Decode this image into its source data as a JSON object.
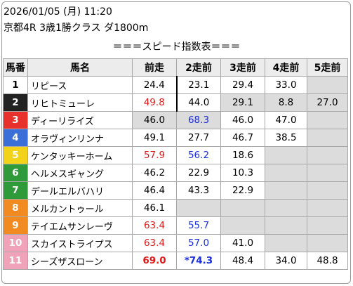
{
  "header": {
    "datetime": "2026/01/05 (月) 11:20",
    "race": "京都4R 3歳1勝クラス ダ1800m"
  },
  "title": "＝＝＝スピード指数表＝＝＝",
  "columns": [
    "馬番",
    "馬名",
    "前走",
    "2走前",
    "3走前",
    "4走前",
    "5走前"
  ],
  "colors": {
    "gray_cell": "#dcdcdc",
    "red_text": "#e01a1a",
    "blue_text": "#1a2ee0"
  },
  "rows": [
    {
      "no": "1",
      "name": "リピース",
      "bg": "#ffffff",
      "fg": "#000000",
      "vals": [
        {
          "t": "24.4",
          "c": "n",
          "g": false
        },
        {
          "t": "23.1",
          "c": "n",
          "g": false
        },
        {
          "t": "29.4",
          "c": "n",
          "g": false
        },
        {
          "t": "33.0",
          "c": "n",
          "g": false
        },
        {
          "t": "",
          "c": "n",
          "g": true
        }
      ]
    },
    {
      "no": "2",
      "name": "リヒトミューレ",
      "bg": "#222222",
      "fg": "#ffffff",
      "vals": [
        {
          "t": "49.8",
          "c": "r",
          "g": false
        },
        {
          "t": "44.0",
          "c": "n",
          "g": false
        },
        {
          "t": "29.1",
          "c": "n",
          "g": true
        },
        {
          "t": "8.8",
          "c": "n",
          "g": true
        },
        {
          "t": "27.0",
          "c": "n",
          "g": true
        }
      ]
    },
    {
      "no": "3",
      "name": "ディーリライズ",
      "bg": "#e8312a",
      "fg": "#ffffff",
      "vals": [
        {
          "t": "46.0",
          "c": "n",
          "g": true
        },
        {
          "t": "68.3",
          "c": "b",
          "g": true
        },
        {
          "t": "46.0",
          "c": "n",
          "g": false
        },
        {
          "t": "47.0",
          "c": "n",
          "g": false
        },
        {
          "t": "",
          "c": "n",
          "g": true
        }
      ]
    },
    {
      "no": "4",
      "name": "オラヴィンリンナ",
      "bg": "#3a6fd8",
      "fg": "#ffffff",
      "vals": [
        {
          "t": "49.1",
          "c": "n",
          "g": false
        },
        {
          "t": "27.7",
          "c": "n",
          "g": false
        },
        {
          "t": "46.7",
          "c": "n",
          "g": false
        },
        {
          "t": "38.5",
          "c": "n",
          "g": false
        },
        {
          "t": "",
          "c": "n",
          "g": true
        }
      ]
    },
    {
      "no": "5",
      "name": "ケンタッキーホーム",
      "bg": "#f3d21a",
      "fg": "#ffffff",
      "vals": [
        {
          "t": "57.9",
          "c": "r",
          "g": false
        },
        {
          "t": "56.2",
          "c": "b",
          "g": false
        },
        {
          "t": "18.6",
          "c": "n",
          "g": false
        },
        {
          "t": "",
          "c": "n",
          "g": true
        },
        {
          "t": "",
          "c": "n",
          "g": true
        }
      ]
    },
    {
      "no": "6",
      "name": "ヘルメスギャング",
      "bg": "#2e9a3a",
      "fg": "#ffffff",
      "vals": [
        {
          "t": "46.2",
          "c": "n",
          "g": false
        },
        {
          "t": "22.9",
          "c": "n",
          "g": false
        },
        {
          "t": "10.3",
          "c": "n",
          "g": false
        },
        {
          "t": "",
          "c": "n",
          "g": true
        },
        {
          "t": "",
          "c": "n",
          "g": true
        }
      ]
    },
    {
      "no": "7",
      "name": "デールエルバハリ",
      "bg": "#2e9a3a",
      "fg": "#ffffff",
      "vals": [
        {
          "t": "46.4",
          "c": "n",
          "g": false
        },
        {
          "t": "43.3",
          "c": "n",
          "g": false
        },
        {
          "t": "22.9",
          "c": "n",
          "g": false
        },
        {
          "t": "",
          "c": "n",
          "g": true
        },
        {
          "t": "",
          "c": "n",
          "g": true
        }
      ]
    },
    {
      "no": "8",
      "name": "メルカントゥール",
      "bg": "#f28a22",
      "fg": "#ffffff",
      "vals": [
        {
          "t": "46.1",
          "c": "n",
          "g": false
        },
        {
          "t": "",
          "c": "n",
          "g": true
        },
        {
          "t": "",
          "c": "n",
          "g": true
        },
        {
          "t": "",
          "c": "n",
          "g": true
        },
        {
          "t": "",
          "c": "n",
          "g": true
        }
      ]
    },
    {
      "no": "9",
      "name": "テイエムサンレーヴ",
      "bg": "#f28a22",
      "fg": "#ffffff",
      "vals": [
        {
          "t": "63.4",
          "c": "r",
          "g": false
        },
        {
          "t": "55.7",
          "c": "b",
          "g": false
        },
        {
          "t": "",
          "c": "n",
          "g": true
        },
        {
          "t": "",
          "c": "n",
          "g": true
        },
        {
          "t": "",
          "c": "n",
          "g": true
        }
      ]
    },
    {
      "no": "10",
      "name": "スカイストライプス",
      "bg": "#f0a3b8",
      "fg": "#ffffff",
      "vals": [
        {
          "t": "63.4",
          "c": "r",
          "g": false
        },
        {
          "t": "57.0",
          "c": "b",
          "g": false
        },
        {
          "t": "41.0",
          "c": "n",
          "g": false
        },
        {
          "t": "",
          "c": "n",
          "g": true
        },
        {
          "t": "",
          "c": "n",
          "g": true
        }
      ]
    },
    {
      "no": "11",
      "name": "シーズザスローン",
      "bg": "#f0a3b8",
      "fg": "#ffffff",
      "vals": [
        {
          "t": "69.0",
          "c": "rb",
          "g": false
        },
        {
          "t": "*74.3",
          "c": "bb",
          "g": false
        },
        {
          "t": "48.4",
          "c": "n",
          "g": false
        },
        {
          "t": "34.0",
          "c": "n",
          "g": false
        },
        {
          "t": "48.8",
          "c": "n",
          "g": false
        }
      ]
    }
  ]
}
